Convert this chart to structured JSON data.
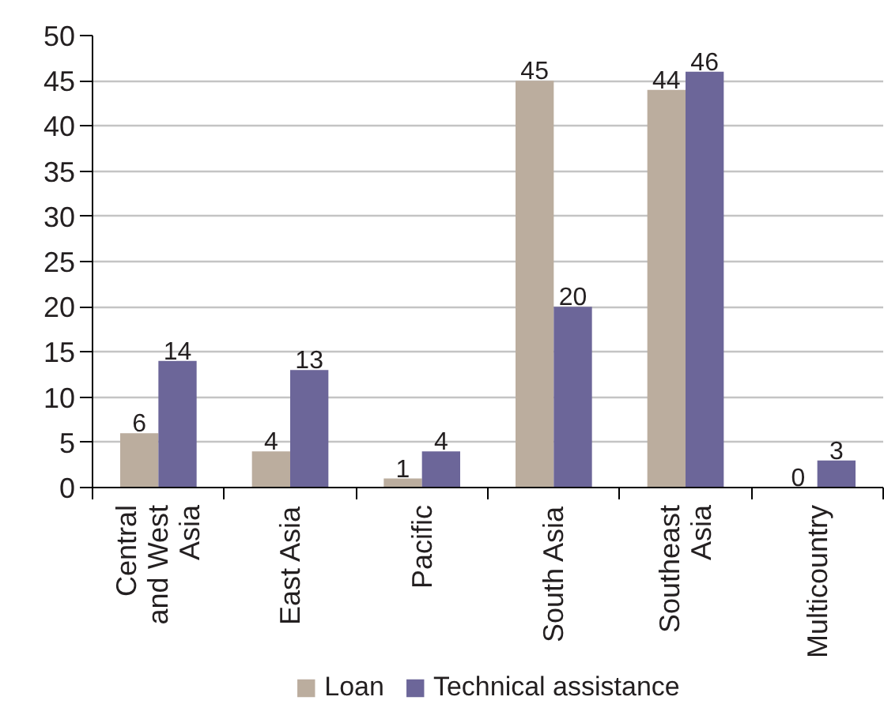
{
  "chart_data": {
    "type": "bar",
    "categories": [
      "Central and West Asia",
      "East Asia",
      "Pacific",
      "South Asia",
      "Southeast Asia",
      "Multicountry"
    ],
    "series": [
      {
        "name": "Loan",
        "color": "#bbad9e",
        "values": [
          6,
          4,
          1,
          45,
          44,
          0
        ]
      },
      {
        "name": "Technical assistance",
        "color": "#6c6699",
        "values": [
          14,
          13,
          4,
          20,
          46,
          3
        ]
      }
    ],
    "ylim": [
      0,
      50
    ],
    "yticks": [
      0,
      5,
      10,
      15,
      20,
      25,
      30,
      35,
      40,
      45,
      50
    ],
    "grid": "y",
    "legend": "bottom",
    "data_labels": true
  }
}
